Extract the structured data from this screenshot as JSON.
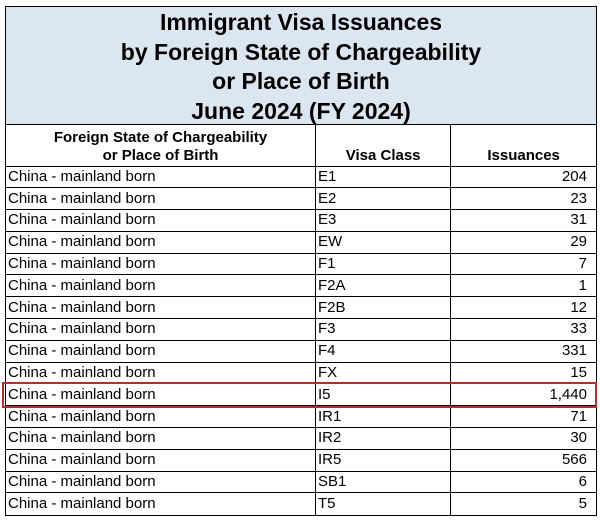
{
  "title": {
    "lines": [
      "Immigrant Visa Issuances",
      "by Foreign State of Chargeability",
      "or Place of Birth",
      "June 2024 (FY 2024)"
    ]
  },
  "table": {
    "headers": {
      "state_line1": "Foreign State of Chargeability",
      "state_line2": "or Place of Birth",
      "visa_class": "Visa Class",
      "issuances": "Issuances"
    },
    "rows": [
      {
        "state": "China - mainland born",
        "visa_class": "E1",
        "issuances": "204"
      },
      {
        "state": "China - mainland born",
        "visa_class": "E2",
        "issuances": "23"
      },
      {
        "state": "China - mainland born",
        "visa_class": "E3",
        "issuances": "31"
      },
      {
        "state": "China - mainland born",
        "visa_class": "EW",
        "issuances": "29"
      },
      {
        "state": "China - mainland born",
        "visa_class": "F1",
        "issuances": "7"
      },
      {
        "state": "China - mainland born",
        "visa_class": "F2A",
        "issuances": "1"
      },
      {
        "state": "China - mainland born",
        "visa_class": "F2B",
        "issuances": "12"
      },
      {
        "state": "China - mainland born",
        "visa_class": "F3",
        "issuances": "33"
      },
      {
        "state": "China - mainland born",
        "visa_class": "F4",
        "issuances": "331"
      },
      {
        "state": "China - mainland born",
        "visa_class": "FX",
        "issuances": "15"
      },
      {
        "state": "China - mainland born",
        "visa_class": "I5",
        "issuances": "1,440"
      },
      {
        "state": "China - mainland born",
        "visa_class": "IR1",
        "issuances": "71"
      },
      {
        "state": "China - mainland born",
        "visa_class": "IR2",
        "issuances": "30"
      },
      {
        "state": "China - mainland born",
        "visa_class": "IR5",
        "issuances": "566"
      },
      {
        "state": "China - mainland born",
        "visa_class": "SB1",
        "issuances": "6"
      },
      {
        "state": "China - mainland born",
        "visa_class": "T5",
        "issuances": "5"
      }
    ]
  },
  "highlight": {
    "row_index": 10,
    "color": "#c0282d"
  },
  "colors": {
    "title_background": "#dce6f1"
  }
}
